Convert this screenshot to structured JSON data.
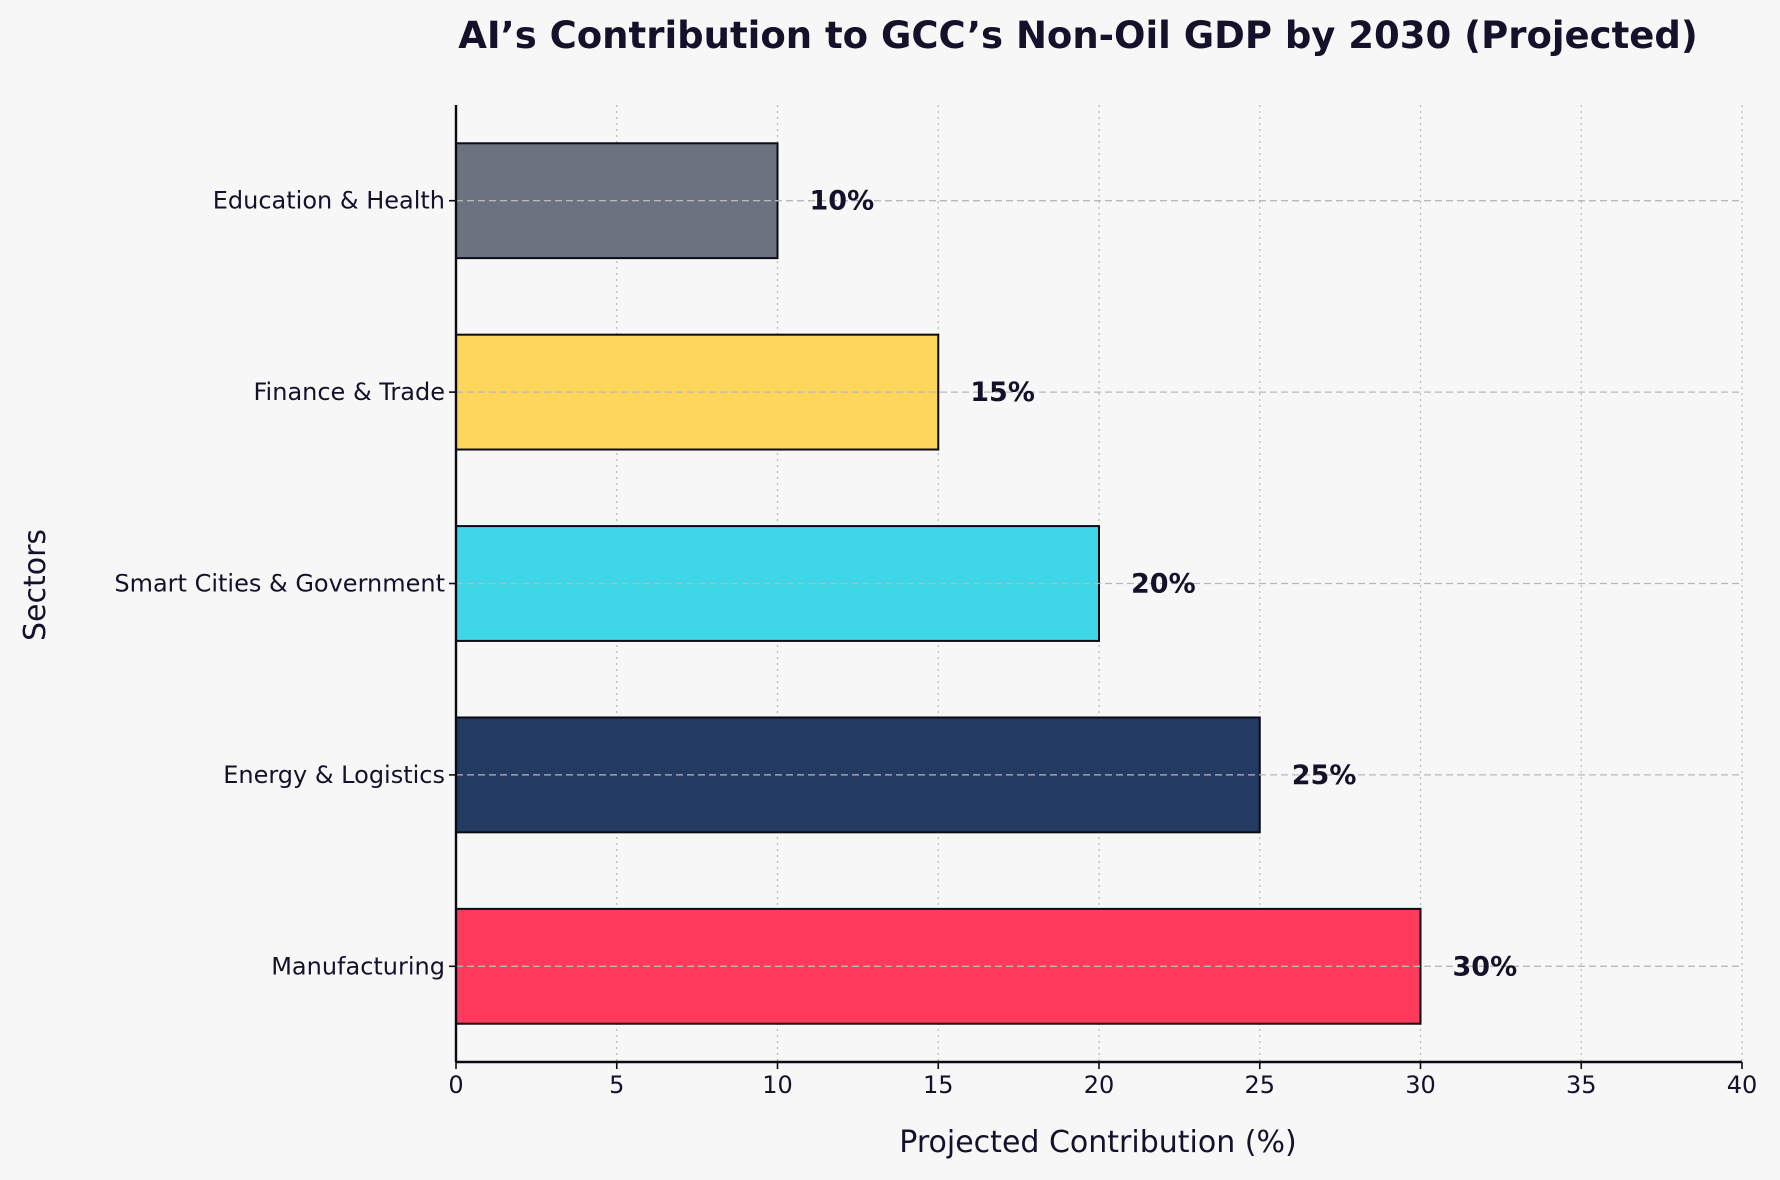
{
  "chart_data": {
    "type": "bar",
    "orientation": "horizontal",
    "title": "AI’s Contribution to GCC’s Non-Oil GDP by 2030 (Projected)",
    "xlabel": "Projected Contribution (%)",
    "ylabel": "Sectors",
    "xlim": [
      0,
      40
    ],
    "xticks": [
      0,
      5,
      10,
      15,
      20,
      25,
      30,
      35,
      40
    ],
    "categories": [
      "Education & Health",
      "Finance & Trade",
      "Smart Cities & Government",
      "Energy & Logistics",
      "Manufacturing"
    ],
    "values": [
      10,
      15,
      20,
      25,
      30
    ],
    "value_labels": [
      "10%",
      "15%",
      "20%",
      "25%",
      "30%"
    ],
    "colors": [
      "#6b7280",
      "#ffd65c",
      "#3fd6e8",
      "#233a63",
      "#ff3a5a"
    ],
    "grid": true
  }
}
